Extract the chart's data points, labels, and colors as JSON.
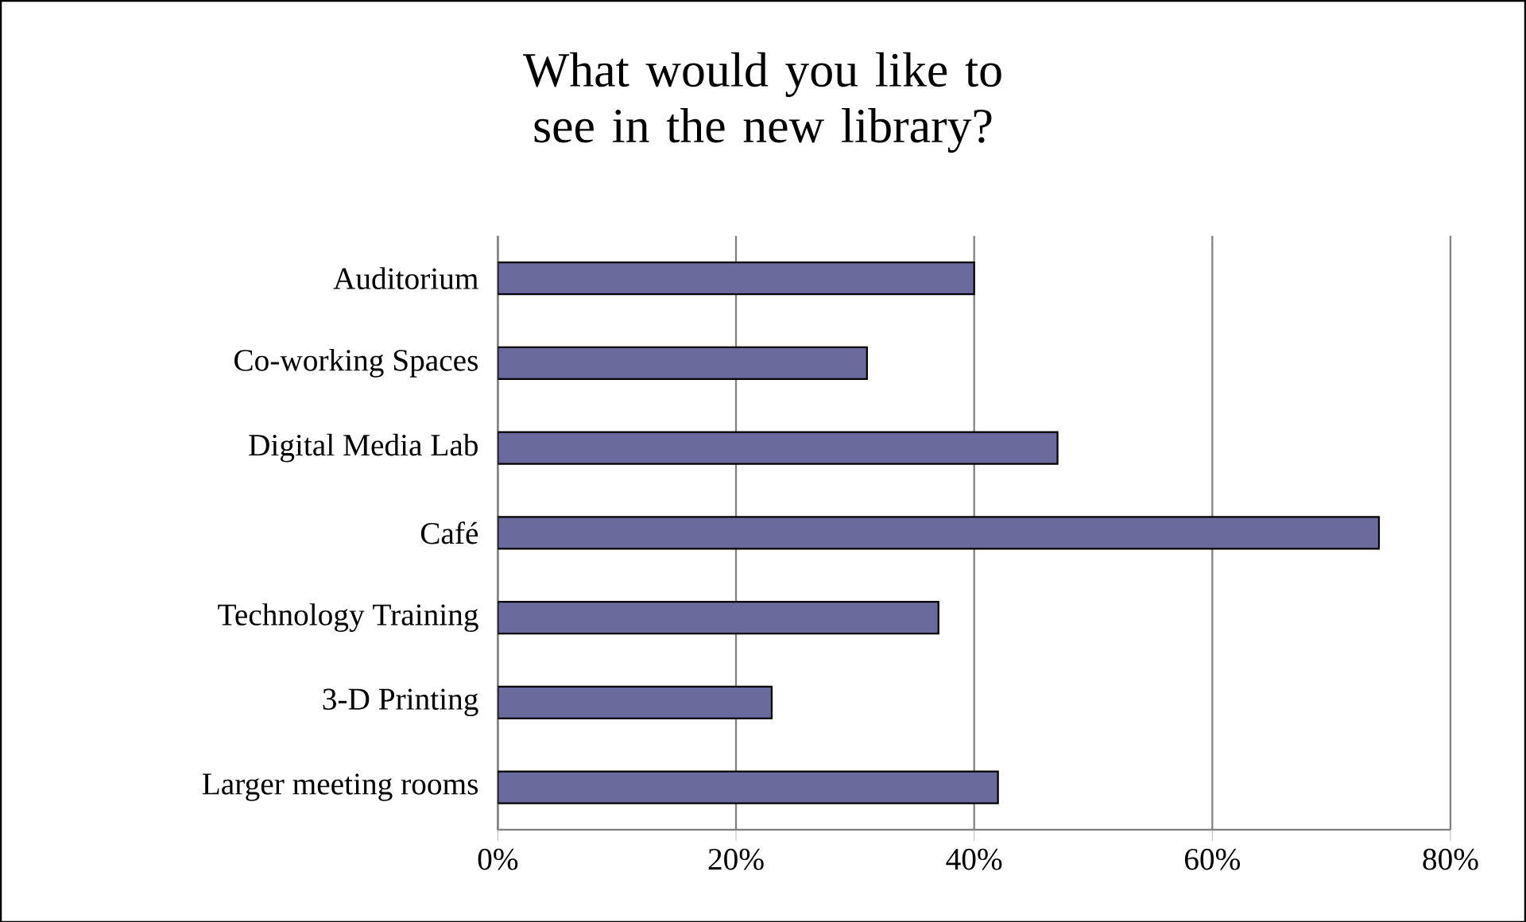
{
  "chart_data": {
    "type": "bar",
    "orientation": "horizontal",
    "title": "What would you like to see in the new library?",
    "categories": [
      "Auditorium",
      "Co-working Spaces",
      "Digital Media Lab",
      "Café",
      "Technology Training",
      "3-D Printing",
      "Larger meeting rooms"
    ],
    "values": [
      40,
      31,
      47,
      74,
      37,
      23,
      42
    ],
    "color": "#6a6a9c",
    "xlim": [
      0,
      80
    ],
    "xticks": [
      {
        "value": 0,
        "label": "0%"
      },
      {
        "value": 20,
        "label": "20%"
      },
      {
        "value": 40,
        "label": "40%"
      },
      {
        "value": 60,
        "label": "60%"
      },
      {
        "value": 80,
        "label": "80%"
      }
    ],
    "grid": "x"
  }
}
